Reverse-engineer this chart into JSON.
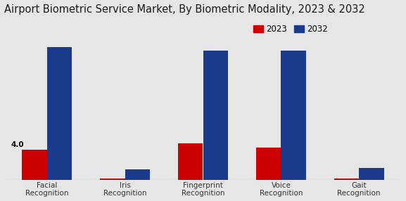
{
  "title": "Airport Biometric Service Market, By Biometric Modality, 2023 & 2032",
  "categories": [
    "Facial\nRecognition",
    "Iris\nRecognition",
    "Fingerprint\nRecognition",
    "Voice\nRecognition",
    "Gait\nRecognition"
  ],
  "values_2023": [
    4.0,
    0.18,
    4.8,
    4.3,
    0.15
  ],
  "values_2032": [
    17.5,
    1.4,
    17.0,
    17.0,
    1.6
  ],
  "color_2023": "#cc0000",
  "color_2032": "#1a3a8c",
  "annotation_text": "4.0",
  "bar_width": 0.32,
  "ylim": [
    0,
    21
  ],
  "background_color": "#e6e6e6",
  "legend_labels": [
    "2023",
    "2032"
  ],
  "title_fontsize": 10.5,
  "axis_label_fontsize": 7.5,
  "tick_fontsize": 7.5,
  "legend_fontsize": 8.5
}
